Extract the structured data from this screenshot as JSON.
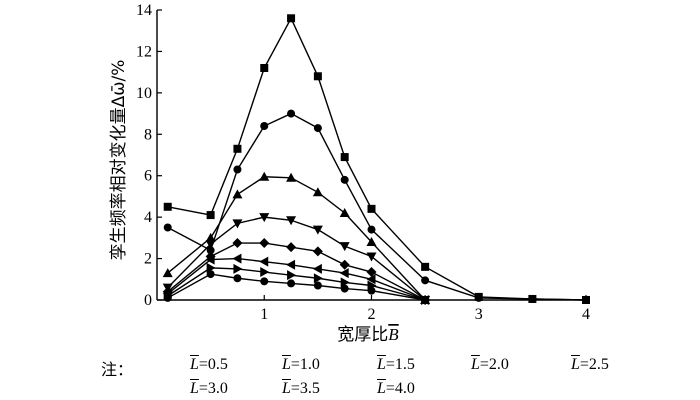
{
  "chart_data": {
    "type": "line",
    "xlabel_text": "宽厚比",
    "xlabel_symbol": "B",
    "ylabel": "孪生频率相对变化量Δω̄/%",
    "xlim": [
      0,
      4
    ],
    "ylim": [
      0,
      14
    ],
    "x_ticks": [
      1,
      2,
      3,
      4
    ],
    "y_ticks": [
      0,
      2,
      4,
      6,
      8,
      10,
      12,
      14
    ],
    "grid": false,
    "legend_prefix": "注：",
    "series": [
      {
        "name": "L=0.5",
        "marker": "square",
        "x": [
          0.1,
          0.5,
          0.75,
          1.0,
          1.25,
          1.5,
          1.75,
          2.0,
          2.5,
          3.0,
          3.5,
          4.0
        ],
        "y": [
          4.5,
          4.1,
          7.3,
          11.2,
          13.6,
          10.8,
          6.9,
          4.4,
          1.6,
          0.15,
          0.05,
          0.0
        ]
      },
      {
        "name": "L=1.0",
        "marker": "circle",
        "x": [
          0.1,
          0.5,
          0.75,
          1.0,
          1.25,
          1.5,
          1.75,
          2.0,
          2.5,
          3.0,
          3.5,
          4.0
        ],
        "y": [
          3.5,
          2.4,
          6.3,
          8.4,
          9.0,
          8.3,
          5.8,
          3.4,
          0.95,
          0.1,
          0.05,
          0.0
        ]
      },
      {
        "name": "L=1.5",
        "marker": "triangle-up",
        "x": [
          0.1,
          0.5,
          0.75,
          1.0,
          1.25,
          1.5,
          1.75,
          2.0,
          2.5
        ],
        "y": [
          1.3,
          3.0,
          5.1,
          5.95,
          5.9,
          5.2,
          4.2,
          2.8,
          0.0
        ]
      },
      {
        "name": "L=2.0",
        "marker": "triangle-down",
        "x": [
          0.1,
          0.5,
          0.75,
          1.0,
          1.25,
          1.5,
          1.75,
          2.0,
          2.5
        ],
        "y": [
          0.6,
          2.7,
          3.7,
          4.0,
          3.85,
          3.4,
          2.6,
          2.1,
          0.0
        ]
      },
      {
        "name": "L=2.5",
        "marker": "diamond",
        "x": [
          0.1,
          0.5,
          0.75,
          1.0,
          1.25,
          1.5,
          1.75,
          2.0,
          2.5
        ],
        "y": [
          0.4,
          2.1,
          2.75,
          2.75,
          2.55,
          2.35,
          1.7,
          1.35,
          0.0
        ]
      },
      {
        "name": "L=3.0",
        "marker": "triangle-left",
        "x": [
          0.1,
          0.5,
          0.75,
          1.0,
          1.25,
          1.5,
          1.75,
          2.0,
          2.5
        ],
        "y": [
          0.3,
          1.95,
          2.0,
          1.85,
          1.7,
          1.5,
          1.3,
          1.0,
          0.0
        ]
      },
      {
        "name": "L=3.5",
        "marker": "triangle-right",
        "x": [
          0.1,
          0.5,
          0.75,
          1.0,
          1.25,
          1.5,
          1.75,
          2.0,
          2.5
        ],
        "y": [
          0.2,
          1.55,
          1.5,
          1.35,
          1.2,
          1.05,
          0.85,
          0.7,
          0.0
        ]
      },
      {
        "name": "L=4.0",
        "marker": "circle",
        "x": [
          0.1,
          0.5,
          0.75,
          1.0,
          1.25,
          1.5,
          1.75,
          2.0,
          2.5
        ],
        "y": [
          0.1,
          1.25,
          1.05,
          0.9,
          0.8,
          0.7,
          0.55,
          0.45,
          0.0
        ]
      }
    ],
    "legend": [
      {
        "symbol": "L",
        "value": "=0.5"
      },
      {
        "symbol": "L",
        "value": "=1.0"
      },
      {
        "symbol": "L",
        "value": "=1.5"
      },
      {
        "symbol": "L",
        "value": "=2.0"
      },
      {
        "symbol": "L",
        "value": "=2.5"
      },
      {
        "symbol": "L",
        "value": "=3.0"
      },
      {
        "symbol": "L",
        "value": "=3.5"
      },
      {
        "symbol": "L",
        "value": "=4.0"
      }
    ]
  }
}
